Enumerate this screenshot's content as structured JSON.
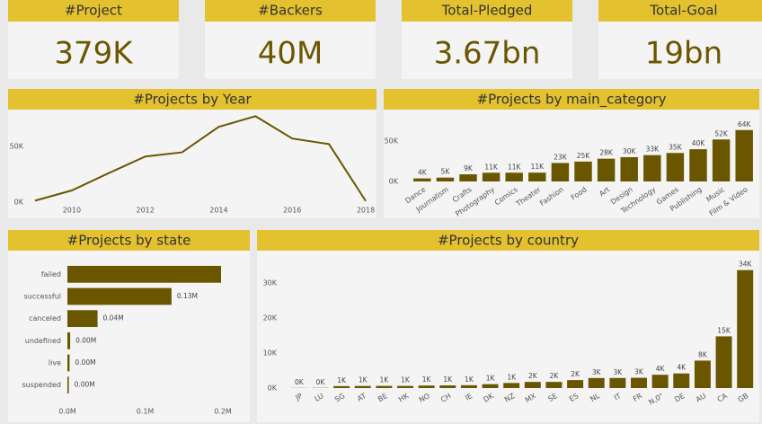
{
  "kpis": [
    {
      "title": "#Project",
      "value": "379K"
    },
    {
      "title": "#Backers",
      "value": "40M"
    },
    {
      "title": "Total-Pledged",
      "value": "3.67bn"
    },
    {
      "title": "Total-Goal",
      "value": "19bn"
    }
  ],
  "chart_data": [
    {
      "type": "line",
      "title": "#Projects by Year",
      "color": "#6b5600",
      "x": [
        2009,
        2010,
        2011,
        2012,
        2013,
        2014,
        2015,
        2016,
        2017,
        2018
      ],
      "values": [
        1300,
        10500,
        26000,
        41000,
        44800,
        67700,
        77300,
        57200,
        52200,
        1000
      ],
      "xlim": [
        2009,
        2018
      ],
      "xticks": [
        2010,
        2012,
        2014,
        2016,
        2018
      ],
      "ylim": [
        0,
        80000
      ],
      "yticks": [
        {
          "value": 0,
          "label": "0K"
        },
        {
          "value": 50000,
          "label": "50K"
        }
      ]
    },
    {
      "type": "bar",
      "title": "#Projects by main_category",
      "color": "#6b5600",
      "categories": [
        "Dance",
        "Journalism",
        "Crafts",
        "Photography",
        "Comics",
        "Theater",
        "Fashion",
        "Food",
        "Art",
        "Design",
        "Technology",
        "Games",
        "Publishing",
        "Music",
        "Film & Video"
      ],
      "values": [
        3768,
        4755,
        8809,
        10779,
        10819,
        10913,
        22816,
        24602,
        28153,
        30070,
        32569,
        35231,
        39874,
        51918,
        63585
      ],
      "value_labels": [
        "4K",
        "5K",
        "9K",
        "11K",
        "11K",
        "11K",
        "23K",
        "25K",
        "28K",
        "30K",
        "33K",
        "35K",
        "40K",
        "52K",
        "64K"
      ],
      "ylim": [
        0,
        70000
      ],
      "yticks": [
        {
          "value": 0,
          "label": "0K"
        },
        {
          "value": 50000,
          "label": "50K"
        }
      ]
    },
    {
      "type": "hbar",
      "title": "#Projects by state",
      "color": "#6b5600",
      "categories": [
        "failed",
        "successful",
        "canceled",
        "undefined",
        "live",
        "suspended"
      ],
      "values": [
        197719,
        133956,
        38779,
        3562,
        2799,
        1846
      ],
      "value_labels": [
        null,
        "0.13M",
        "0.04M",
        "0.00M",
        "0.00M",
        "0.00M"
      ],
      "xlim": [
        0,
        200000
      ],
      "xticks": [
        {
          "value": 0,
          "label": "0.0M"
        },
        {
          "value": 100000,
          "label": "0.1M"
        },
        {
          "value": 200000,
          "label": "0.2M"
        }
      ]
    },
    {
      "type": "bar",
      "title": "#Projects by country",
      "color": "#6b5600",
      "categories": [
        "JP",
        "LU",
        "SG",
        "AT",
        "BE",
        "HK",
        "NO",
        "CH",
        "IE",
        "DK",
        "NZ",
        "MX",
        "SE",
        "ES",
        "NL",
        "IT",
        "FR",
        "N,0\"",
        "DE",
        "AU",
        "CA",
        "GB"
      ],
      "values": [
        40,
        62,
        555,
        597,
        617,
        618,
        722,
        761,
        811,
        1113,
        1447,
        1752,
        1757,
        2276,
        2868,
        2878,
        2939,
        3797,
        4171,
        7839,
        14756,
        33672
      ],
      "value_labels": [
        "0K",
        "0K",
        "1K",
        "1K",
        "1K",
        "1K",
        "1K",
        "1K",
        "1K",
        "1K",
        "1K",
        "2K",
        "2K",
        "2K",
        "3K",
        "3K",
        "3K",
        "4K",
        "4K",
        "8K",
        "15K",
        "34K"
      ],
      "ylim": [
        0,
        36000
      ],
      "yticks": [
        {
          "value": 0,
          "label": "0K"
        },
        {
          "value": 10000,
          "label": "10K"
        },
        {
          "value": 20000,
          "label": "20K"
        },
        {
          "value": 30000,
          "label": "30K"
        }
      ]
    }
  ]
}
